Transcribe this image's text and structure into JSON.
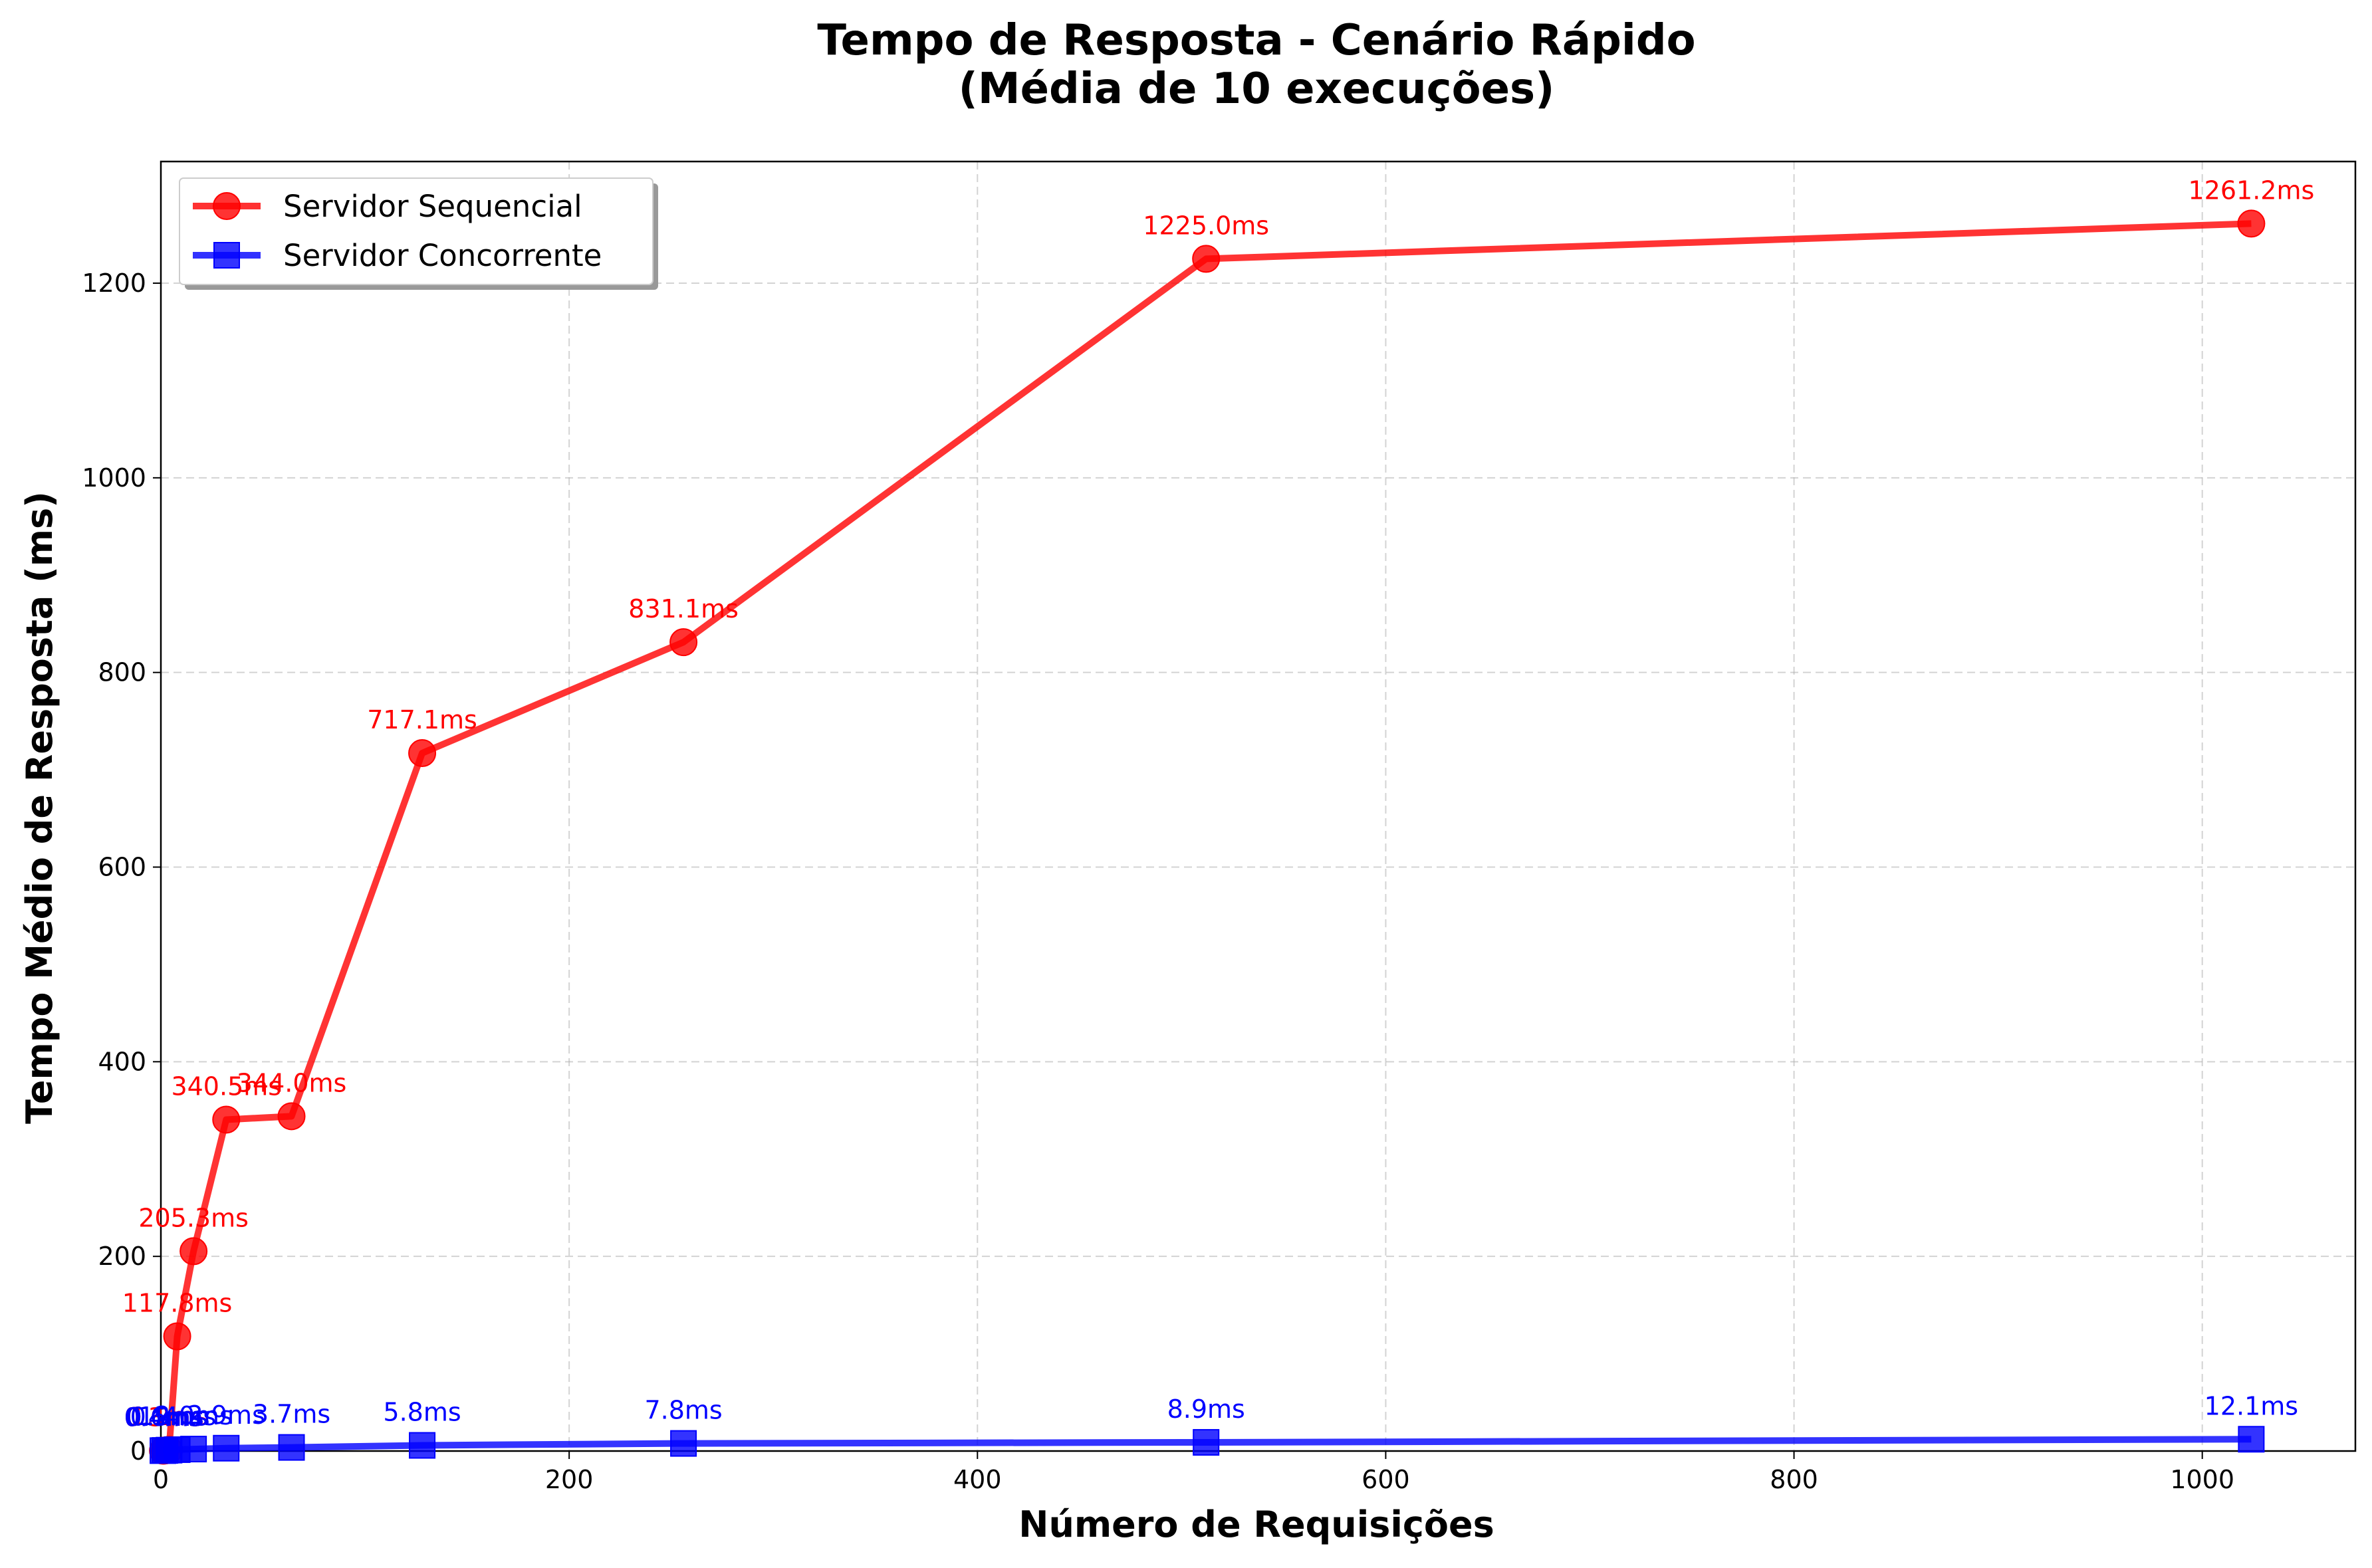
{
  "chart_data": {
    "type": "line",
    "title": "Tempo de Resposta - Cenário Rápido",
    "subtitle": "(Média de 10 execuções)",
    "xlabel": "Número de Requisições",
    "ylabel": "Tempo Médio de Resposta (ms)",
    "xlim": [
      0,
      1075
    ],
    "ylim": [
      0,
      1325
    ],
    "xticks": [
      0,
      200,
      400,
      600,
      800,
      1000
    ],
    "yticks": [
      0,
      200,
      400,
      600,
      800,
      1000,
      1200
    ],
    "xtick_labels": [
      "0",
      "200",
      "400",
      "600",
      "800",
      "1000"
    ],
    "ytick_labels": [
      "0",
      "200",
      "400",
      "600",
      "800",
      "1000",
      "1200"
    ],
    "grid": true,
    "legend_position": "top-left",
    "series": [
      {
        "name": "Servidor Sequencial",
        "color": "#ff0000",
        "marker": "circle",
        "x": [
          1,
          2,
          4,
          8,
          16,
          32,
          64,
          128,
          256,
          512,
          1024
        ],
        "y": [
          0.3,
          0.6,
          1.2,
          117.8,
          205.3,
          340.5,
          344.0,
          717.1,
          831.1,
          1225.0,
          1261.2
        ],
        "labels": [
          "0.3ms",
          "0.6ms",
          "1.2ms",
          "117.8ms",
          "205.3ms",
          "340.5ms",
          "344.0ms",
          "717.1ms",
          "831.1ms",
          "1225.0ms",
          "1261.2ms"
        ]
      },
      {
        "name": "Servidor Concorrente",
        "color": "#0000ff",
        "marker": "square",
        "x": [
          1,
          2,
          4,
          8,
          16,
          32,
          64,
          128,
          256,
          512,
          1024
        ],
        "y": [
          0.4,
          0.6,
          0.9,
          1.4,
          2.0,
          2.9,
          3.7,
          5.8,
          7.8,
          8.9,
          12.1
        ],
        "labels": [
          "0.4ms",
          "0.6ms",
          "0.9ms",
          "1.4ms",
          "2.0ms",
          "2.9ms",
          "3.7ms",
          "5.8ms",
          "7.8ms",
          "8.9ms",
          "12.1ms"
        ]
      }
    ]
  }
}
